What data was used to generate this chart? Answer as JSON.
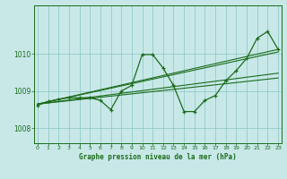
{
  "title": "Graphe pression niveau de la mer (hPa)",
  "bg_color": "#c8e8e8",
  "grid_color": "#88c4c4",
  "line_color": "#1a6b1a",
  "ylim": [
    1007.6,
    1011.3
  ],
  "xlim": [
    -0.3,
    23.3
  ],
  "yticks": [
    1008,
    1009,
    1010
  ],
  "xticks": [
    0,
    1,
    2,
    3,
    4,
    5,
    6,
    7,
    8,
    9,
    10,
    11,
    12,
    13,
    14,
    15,
    16,
    17,
    18,
    19,
    20,
    21,
    22,
    23
  ],
  "main_x": [
    0,
    1,
    2,
    3,
    4,
    5,
    6,
    7,
    8,
    9,
    10,
    11,
    12,
    13,
    14,
    15,
    16,
    17,
    18,
    19,
    20,
    21,
    22,
    23
  ],
  "main_y": [
    1008.62,
    1008.72,
    1008.78,
    1008.82,
    1008.82,
    1008.82,
    1008.75,
    1008.5,
    1009.0,
    1009.15,
    1009.98,
    1009.98,
    1009.62,
    1009.15,
    1008.45,
    1008.45,
    1008.75,
    1008.88,
    1009.28,
    1009.55,
    1009.88,
    1010.42,
    1010.6,
    1010.12
  ],
  "trend_lines": [
    [
      1008.65,
      1010.12
    ],
    [
      1008.65,
      1010.05
    ],
    [
      1008.65,
      1009.48
    ],
    [
      1008.65,
      1009.35
    ]
  ]
}
